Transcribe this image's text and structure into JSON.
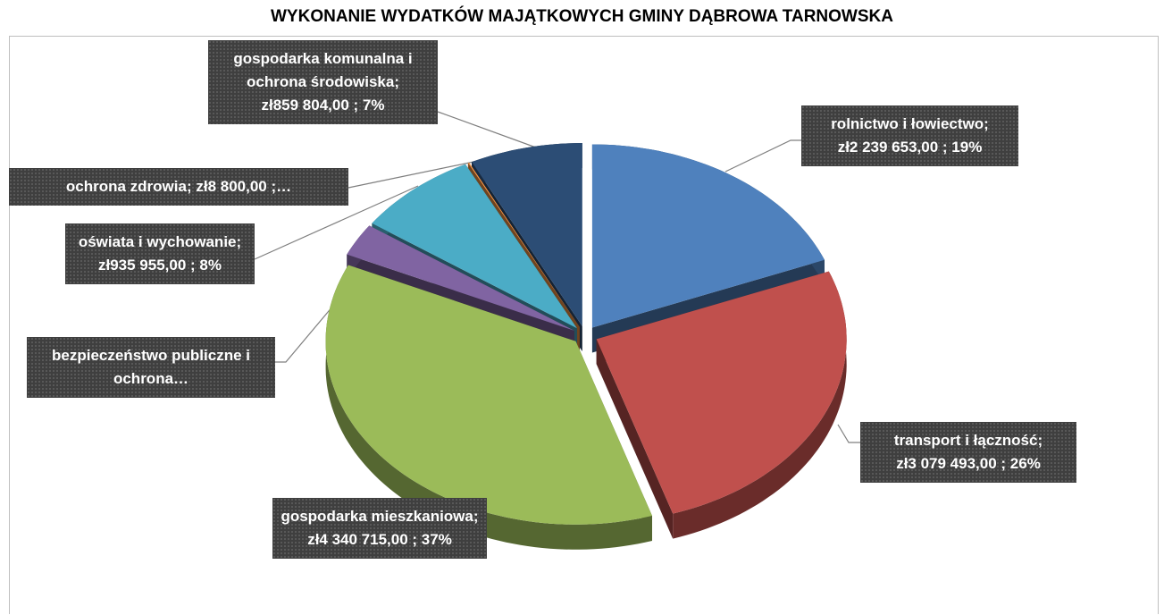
{
  "chart_data": {
    "type": "pie",
    "title": "WYKONANIE WYDATKÓW MAJĄTKOWYCH GMINY DĄBROWA TARNOWSKA",
    "categories": [
      "rolnictwo i łowiectwo;",
      "transport i łączność;",
      "gospodarka mieszkaniowa;",
      "bezpieczeństwo publiczne i ochrona…",
      "oświata i wychowanie;",
      "ochrona zdrowia;",
      "gospodarka komunalna i ochrona środowiska;"
    ],
    "values": [
      2239653,
      3079493,
      4340715,
      340000,
      935955,
      8800,
      859804
    ],
    "value_labels": [
      "zł2 239 653,00 ; 19%",
      "zł3 079 493,00 ; 26%",
      "zł4 340 715,00 ; 37%",
      null,
      "zł935 955,00 ; 8%",
      "zł8 800,00 ;…",
      "zł859 804,00 ; 7%"
    ],
    "colors": [
      "#4f81bd",
      "#c0504d",
      "#9bbb59",
      "#8064a2",
      "#4bacc6",
      "#f79646",
      "#2c4d75"
    ]
  }
}
